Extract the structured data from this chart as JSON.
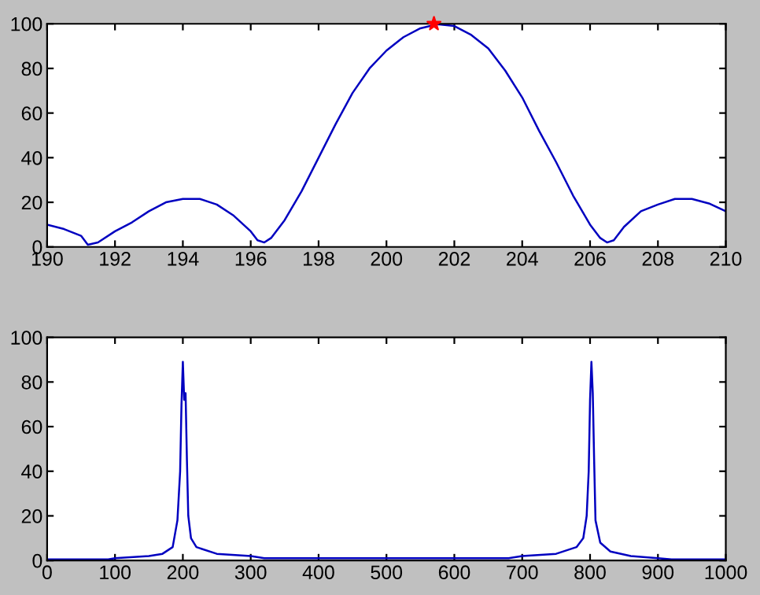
{
  "chart_data": [
    {
      "type": "line",
      "xlim": [
        190,
        210
      ],
      "xticks": [
        190,
        192,
        194,
        196,
        198,
        200,
        202,
        204,
        206,
        208,
        210
      ],
      "ylim": [
        0,
        100
      ],
      "yticks": [
        0,
        20,
        40,
        60,
        80,
        100
      ],
      "grid": false,
      "legend": false,
      "series": [
        {
          "color": "#0000c0",
          "x": [
            190,
            190.5,
            191,
            191.2,
            191.5,
            192,
            192.5,
            193,
            193.5,
            194,
            194.5,
            195,
            195.5,
            196,
            196.2,
            196.4,
            196.6,
            197,
            197.5,
            198,
            198.5,
            199,
            199.5,
            200,
            200.5,
            201,
            201.5,
            202,
            202.5,
            203,
            203.5,
            204,
            204.5,
            205,
            205.5,
            206,
            206.3,
            206.5,
            206.7,
            207,
            207.5,
            208,
            208.5,
            209,
            209.5,
            210
          ],
          "values": [
            10,
            8,
            5,
            1,
            2,
            7,
            11,
            16,
            20,
            21.5,
            21.5,
            19,
            14,
            7,
            3,
            2,
            4,
            12,
            25,
            40,
            55,
            69,
            80,
            88,
            94,
            98,
            99.8,
            99,
            95,
            89,
            79,
            67,
            52,
            38,
            23,
            10,
            4,
            2,
            3,
            9,
            16,
            19,
            21.5,
            21.5,
            19.5,
            16
          ]
        },
        {
          "type": "scatter",
          "marker": "star",
          "color": "#ff0000",
          "x": [
            201.4
          ],
          "values": [
            100
          ]
        }
      ]
    },
    {
      "type": "line",
      "xlim": [
        0,
        1000
      ],
      "xticks": [
        0,
        100,
        200,
        300,
        400,
        500,
        600,
        700,
        800,
        900,
        1000
      ],
      "ylim": [
        0,
        100
      ],
      "yticks": [
        0,
        20,
        40,
        60,
        80,
        100
      ],
      "grid": false,
      "legend": false,
      "series": [
        {
          "color": "#0000c0",
          "x": [
            0,
            90,
            100,
            150,
            170,
            185,
            192,
            196,
            198,
            200,
            202,
            204,
            206,
            208,
            212,
            220,
            250,
            300,
            320,
            680,
            700,
            750,
            780,
            790,
            795,
            798,
            800,
            802,
            804,
            806,
            808,
            815,
            830,
            860,
            900,
            920,
            1000
          ],
          "values": [
            0.5,
            0.5,
            1,
            2,
            3,
            6,
            18,
            40,
            70,
            89,
            72,
            75,
            45,
            20,
            10,
            6,
            3,
            2,
            1,
            1,
            2,
            3,
            6,
            10,
            20,
            40,
            72,
            89,
            75,
            45,
            18,
            8,
            4,
            2,
            1,
            0.5,
            0.5
          ]
        }
      ]
    }
  ]
}
